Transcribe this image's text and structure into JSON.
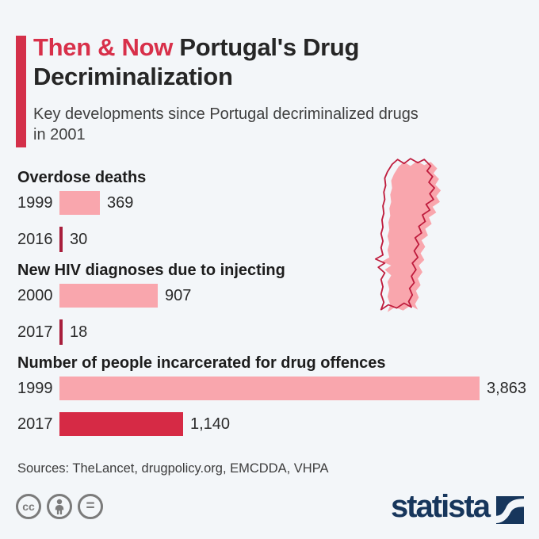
{
  "header": {
    "title_accent": "Then & Now",
    "title_rest": " Portugal's Drug Decriminalization",
    "subtitle": "Key developments since Portugal decriminalized drugs in 2001"
  },
  "chart_data": {
    "type": "bar",
    "orientation": "horizontal",
    "title": "Then & Now Portugal's Drug Decriminalization",
    "subtitle": "Key developments since Portugal decriminalized drugs in 2001",
    "max_value": 3863,
    "sections": [
      {
        "heading": "Overdose deaths",
        "rows": [
          {
            "year": "1999",
            "value": 369,
            "label": "369",
            "style": "pink"
          },
          {
            "year": "2016",
            "value": 30,
            "label": "30",
            "style": "dark-thin"
          }
        ]
      },
      {
        "heading": "New HIV diagnoses due to injecting",
        "rows": [
          {
            "year": "2000",
            "value": 907,
            "label": "907",
            "style": "pink"
          },
          {
            "year": "2017",
            "value": 18,
            "label": "18",
            "style": "dark-thin"
          }
        ]
      },
      {
        "heading": "Number of people incarcerated for drug offences",
        "rows": [
          {
            "year": "1999",
            "value": 3863,
            "label": "3,863",
            "style": "pink"
          },
          {
            "year": "2017",
            "value": 1140,
            "label": "1,140",
            "style": "red"
          }
        ]
      }
    ],
    "colors": {
      "pink": "#f9a6ad",
      "red": "#d62a45",
      "dark_thin": "#a81e3c",
      "accent": "#d8304a"
    }
  },
  "map": {
    "region": "Portugal",
    "fill": "#f9a6ad",
    "stroke": "#bf1c3d"
  },
  "footer": {
    "sources": "Sources: TheLancet, drugpolicy.org, EMCDDA, VHPA",
    "license_icons": [
      "cc",
      "attribution",
      "no-derivatives"
    ],
    "brand": "statista"
  }
}
